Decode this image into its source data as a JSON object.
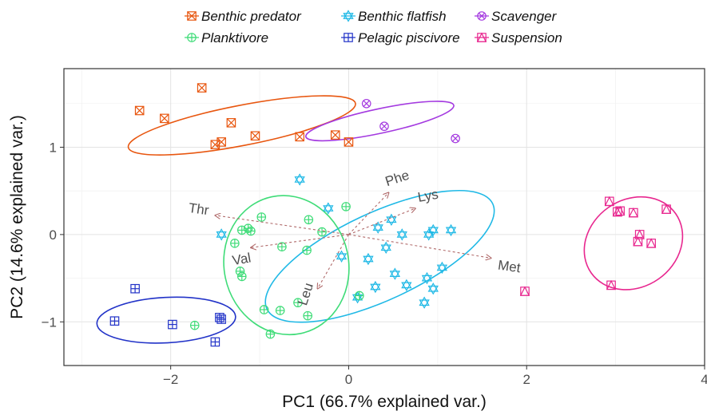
{
  "chart_data": {
    "type": "scatter",
    "title": "",
    "xlabel": "PC1 (66.7% explained var.)",
    "ylabel": "PC2 (14.6% explained var.)",
    "xlim": [
      -3.2,
      4.0
    ],
    "ylim": [
      -1.5,
      1.9
    ],
    "x_ticks": [
      -2,
      0,
      2,
      4
    ],
    "y_ticks": [
      -1,
      0,
      1
    ],
    "grid": true,
    "legend_position": "top",
    "series": [
      {
        "name": "Benthic predator",
        "color": "#e8560f",
        "marker": "square-x",
        "points": [
          [
            -1.65,
            1.68
          ],
          [
            -2.35,
            1.42
          ],
          [
            -2.07,
            1.33
          ],
          [
            -1.32,
            1.28
          ],
          [
            -1.05,
            1.13
          ],
          [
            -0.55,
            1.12
          ],
          [
            -0.15,
            1.14
          ],
          [
            0.0,
            1.06
          ],
          [
            -1.43,
            1.06
          ],
          [
            -1.5,
            1.03
          ]
        ],
        "ellipse": {
          "cx": -1.2,
          "cy": 1.25,
          "rx": 1.3,
          "ry": 0.23,
          "angle_deg": -11
        }
      },
      {
        "name": "Benthic flatfish",
        "color": "#20b9e6",
        "marker": "star-of-david",
        "points": [
          [
            -0.55,
            0.63
          ],
          [
            -1.43,
            0.0
          ],
          [
            -0.23,
            0.3
          ],
          [
            -0.08,
            -0.25
          ],
          [
            0.1,
            -0.72
          ],
          [
            0.33,
            0.08
          ],
          [
            0.48,
            0.17
          ],
          [
            0.22,
            -0.28
          ],
          [
            0.42,
            -0.15
          ],
          [
            0.52,
            -0.45
          ],
          [
            0.6,
            0.0
          ],
          [
            0.9,
            0.0
          ],
          [
            0.95,
            0.05
          ],
          [
            1.15,
            0.05
          ],
          [
            0.88,
            -0.5
          ],
          [
            0.95,
            -0.62
          ],
          [
            0.85,
            -0.78
          ],
          [
            1.05,
            -0.38
          ],
          [
            0.65,
            -0.58
          ],
          [
            0.3,
            -0.6
          ]
        ],
        "ellipse": {
          "cx": 0.35,
          "cy": -0.25,
          "rx": 1.4,
          "ry": 0.5,
          "angle_deg": -25
        }
      },
      {
        "name": "Scavenger",
        "color": "#a43ae0",
        "marker": "circle-x",
        "points": [
          [
            0.2,
            1.5
          ],
          [
            0.4,
            1.24
          ],
          [
            1.2,
            1.1
          ]
        ],
        "ellipse": {
          "cx": 0.35,
          "cy": 1.3,
          "rx": 0.85,
          "ry": 0.14,
          "angle_deg": -12
        }
      },
      {
        "name": "Planktivore",
        "color": "#3fdc78",
        "marker": "circle-plus",
        "points": [
          [
            -0.98,
            0.2
          ],
          [
            -0.45,
            0.17
          ],
          [
            -1.13,
            0.07
          ],
          [
            -1.2,
            0.05
          ],
          [
            -1.1,
            0.04
          ],
          [
            -0.47,
            -0.18
          ],
          [
            -0.75,
            -0.14
          ],
          [
            -1.28,
            -0.1
          ],
          [
            -1.22,
            -0.42
          ],
          [
            -1.2,
            -0.48
          ],
          [
            -0.03,
            0.32
          ],
          [
            -0.95,
            -0.86
          ],
          [
            -0.77,
            -0.87
          ],
          [
            -0.57,
            -0.78
          ],
          [
            -0.46,
            -0.93
          ],
          [
            -0.88,
            -1.14
          ],
          [
            -1.73,
            -1.04
          ],
          [
            0.12,
            -0.7
          ],
          [
            -0.3,
            0.03
          ]
        ],
        "ellipse": {
          "cx": -0.7,
          "cy": -0.35,
          "rx": 0.7,
          "ry": 0.8,
          "angle_deg": -12
        }
      },
      {
        "name": "Pelagic piscivore",
        "color": "#2233c8",
        "marker": "square-plus",
        "points": [
          [
            -2.4,
            -0.62
          ],
          [
            -2.63,
            -0.99
          ],
          [
            -1.98,
            -1.03
          ],
          [
            -1.45,
            -0.95
          ],
          [
            -1.43,
            -0.97
          ],
          [
            -1.5,
            -1.23
          ]
        ],
        "ellipse": {
          "cx": -2.05,
          "cy": -0.98,
          "rx": 0.78,
          "ry": 0.26,
          "angle_deg": -3
        }
      },
      {
        "name": "Suspension",
        "color": "#e8278f",
        "marker": "square-triangle",
        "points": [
          [
            1.98,
            -0.65
          ],
          [
            2.93,
            0.38
          ],
          [
            3.02,
            0.26
          ],
          [
            3.05,
            0.27
          ],
          [
            3.2,
            0.25
          ],
          [
            3.27,
            0.0
          ],
          [
            3.25,
            -0.08
          ],
          [
            3.57,
            0.29
          ],
          [
            3.4,
            -0.1
          ],
          [
            2.95,
            -0.58
          ]
        ],
        "ellipse": {
          "cx": 3.2,
          "cy": -0.1,
          "rx": 0.58,
          "ry": 0.5,
          "angle_deg": -35
        }
      }
    ],
    "loadings": [
      {
        "label": "Thr",
        "x": -1.5,
        "y": 0.22
      },
      {
        "label": "Val",
        "x": -1.1,
        "y": -0.15
      },
      {
        "label": "Leu",
        "x": -0.35,
        "y": -0.62
      },
      {
        "label": "Phe",
        "x": 0.45,
        "y": 0.48
      },
      {
        "label": "Lys",
        "x": 0.75,
        "y": 0.3
      },
      {
        "label": "Met",
        "x": 1.6,
        "y": -0.27
      }
    ],
    "loading_color": "#b06a6a"
  }
}
